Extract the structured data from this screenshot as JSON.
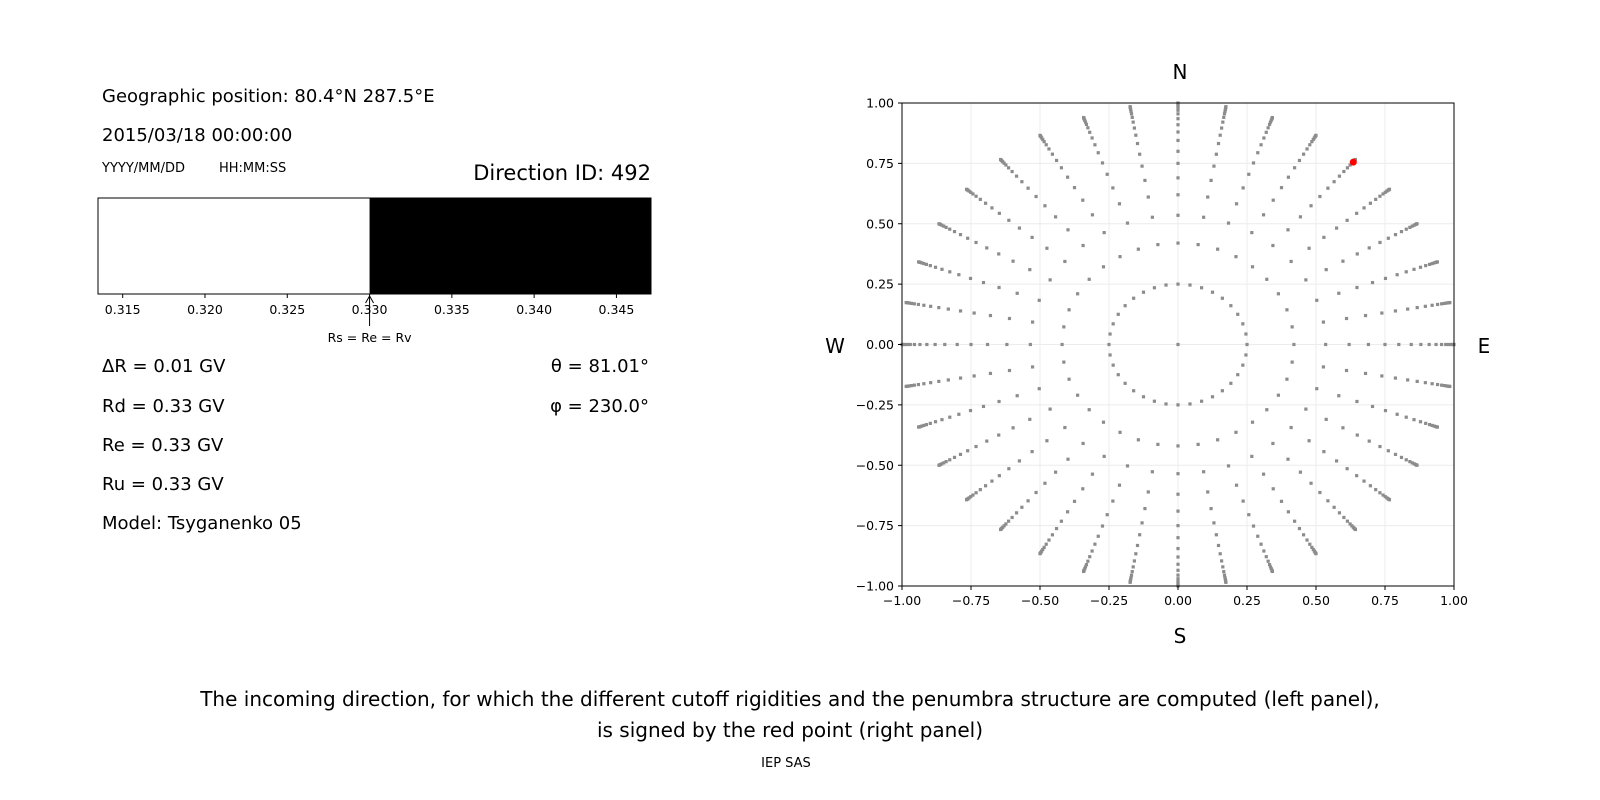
{
  "left_panel": {
    "geo_position": "Geographic position: 80.4°N 287.5°E",
    "datetime": "2015/03/18 00:00:00",
    "date_format": "YYYY/MM/DD",
    "time_format": "HH:MM:SS",
    "direction_id": "Direction ID: 492",
    "params": [
      "ΔR = 0.01 GV",
      "Rd = 0.33 GV",
      "Re = 0.33 GV",
      "Ru = 0.33 GV",
      "Model: Tsyganenko 05"
    ],
    "theta": "θ = 81.01°",
    "phi": "φ = 230.0°"
  },
  "caption": {
    "line1": "The incoming direction, for which the different cutoff rigidities and the penumbra structure are computed (left panel),",
    "line2": "is signed by the red point (right panel)",
    "credit": "IEP SAS"
  },
  "chart_data": [
    {
      "type": "bar",
      "description_label": "penumbra",
      "xlim": [
        0.3135,
        0.3471
      ],
      "xticks": [
        "0.315",
        "0.320",
        "0.325",
        "0.330",
        "0.335",
        "0.340",
        "0.345"
      ],
      "segments": [
        {
          "from": 0.3135,
          "to": 0.33,
          "color": "#ffffff"
        },
        {
          "from": 0.33,
          "to": 0.3471,
          "color": "#000000"
        }
      ],
      "annotation": {
        "text": "Rs = Re = Rv",
        "x": 0.33
      }
    },
    {
      "type": "scatter",
      "xlim": [
        -1,
        1
      ],
      "ylim": [
        -1,
        1
      ],
      "xticks": [
        "−1.00",
        "−0.75",
        "−0.50",
        "−0.25",
        "0.00",
        "0.25",
        "0.50",
        "0.75",
        "1.00"
      ],
      "yticks": [
        "1.00",
        "0.75",
        "0.50",
        "0.25",
        "0.00",
        "−0.25",
        "−0.50",
        "−0.75",
        "−1.00"
      ],
      "grid": true,
      "compass": {
        "N": "N",
        "S": "S",
        "E": "E",
        "W": "W"
      },
      "point_color": "#8c8c8c",
      "highlight_color": "#ff0000",
      "spoke_azimuth_step_deg": 10,
      "inner_ring_radius": 0.25,
      "spoke_radii": [
        0.42,
        0.535,
        0.62,
        0.69,
        0.75,
        0.8,
        0.845,
        0.88,
        0.91,
        0.935,
        0.955,
        0.97,
        0.98,
        0.988,
        0.994,
        0.998,
        1.0
      ],
      "center_point": [
        0,
        0
      ],
      "highlight_point": [
        0.635,
        0.755
      ]
    }
  ]
}
